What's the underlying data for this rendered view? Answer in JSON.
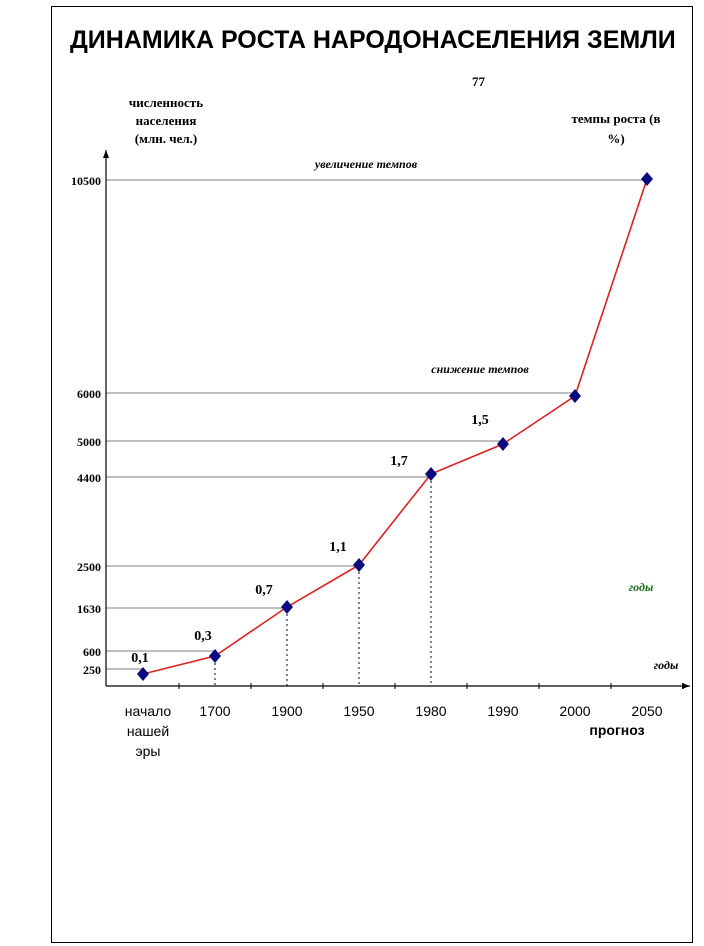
{
  "chart_data": {
    "type": "line",
    "title": "ДИНАМИКА РОСТА НАРОДОНАСЕЛЕНИЯ ЗЕМЛИ",
    "stray_mark": "77",
    "ylabel": [
      "численность",
      "населения",
      "(млн. чел.)"
    ],
    "rate_label": [
      "темпы роста (в",
      "%)"
    ],
    "xlabel": "годы",
    "extra_label": "годы",
    "annotations": {
      "increase": "увеличение темпов",
      "decrease": "снижение темпов"
    },
    "categories": [
      [
        "начало",
        "нашей",
        "эры"
      ],
      [
        "1700"
      ],
      [
        "1900"
      ],
      [
        "1950"
      ],
      [
        "1980"
      ],
      [
        "1990"
      ],
      [
        "2000"
      ],
      [
        "2050"
      ]
    ],
    "forecast_label": "прогноз",
    "values": [
      250,
      600,
      1630,
      2500,
      4400,
      5000,
      6000,
      10500
    ],
    "y_ticks": [
      "10500",
      "6000",
      "5000",
      "4400",
      "2500",
      "1630",
      "600",
      "250"
    ],
    "y_tick_values": [
      10500,
      6000,
      5000,
      4400,
      2500,
      1630,
      600,
      250
    ],
    "growth_rates": [
      "0,1",
      "0,3",
      "0,7",
      "1,1",
      "1,7",
      "1,5"
    ],
    "colors": {
      "line": "#e02020",
      "marker": "#0a0a80",
      "green": "#1a6b1a"
    }
  }
}
